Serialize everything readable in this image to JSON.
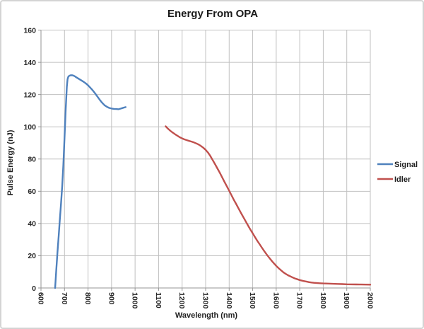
{
  "title": "Energy From OPA",
  "colors": {
    "signal": "#4F81BD",
    "idler": "#C0504D",
    "gridline": "#C0C0C0",
    "axis_line": "#969696",
    "text": "#1f1f1f",
    "frame_border": "#d4d4d4",
    "background": "#ffffff"
  },
  "legend": {
    "entries": [
      {
        "label": "Signal",
        "color": "#4F81BD"
      },
      {
        "label": "Idler",
        "color": "#C0504D"
      }
    ],
    "position": "right"
  },
  "chart_data": {
    "type": "line",
    "title": "Energy From OPA",
    "xlabel": "Wavelength (nm)",
    "ylabel": "Pulse Energy (nJ)",
    "xlim": [
      600,
      2000
    ],
    "ylim": [
      0,
      160
    ],
    "x_ticks": [
      600,
      700,
      800,
      900,
      1000,
      1100,
      1200,
      1300,
      1400,
      1500,
      1600,
      1700,
      1800,
      1900,
      2000
    ],
    "y_ticks": [
      0,
      20,
      40,
      60,
      80,
      100,
      120,
      140,
      160
    ],
    "grid": true,
    "legend_position": "right",
    "series": [
      {
        "name": "Signal",
        "color": "#4F81BD",
        "points": [
          [
            660,
            0
          ],
          [
            665,
            11
          ],
          [
            670,
            22
          ],
          [
            675,
            32
          ],
          [
            680,
            42
          ],
          [
            685,
            52
          ],
          [
            690,
            63
          ],
          [
            695,
            76
          ],
          [
            700,
            93
          ],
          [
            705,
            111
          ],
          [
            710,
            125
          ],
          [
            713,
            129.5
          ],
          [
            716,
            131
          ],
          [
            720,
            131.6
          ],
          [
            725,
            131.9
          ],
          [
            730,
            132
          ],
          [
            735,
            131.9
          ],
          [
            740,
            131.6
          ],
          [
            745,
            131.2
          ],
          [
            750,
            130.7
          ],
          [
            760,
            129.8
          ],
          [
            770,
            128.9
          ],
          [
            780,
            128
          ],
          [
            790,
            127
          ],
          [
            800,
            125.7
          ],
          [
            810,
            124.2
          ],
          [
            820,
            122.6
          ],
          [
            830,
            120.7
          ],
          [
            840,
            118.7
          ],
          [
            850,
            116.7
          ],
          [
            860,
            114.9
          ],
          [
            870,
            113.4
          ],
          [
            880,
            112.4
          ],
          [
            890,
            111.7
          ],
          [
            900,
            111.3
          ],
          [
            910,
            111.1
          ],
          [
            920,
            111
          ],
          [
            930,
            110.9
          ],
          [
            940,
            111.3
          ],
          [
            950,
            111.8
          ],
          [
            960,
            112.2
          ]
        ]
      },
      {
        "name": "Idler",
        "color": "#C0504D",
        "points": [
          [
            1130,
            100.3
          ],
          [
            1140,
            98.8
          ],
          [
            1150,
            97.5
          ],
          [
            1160,
            96.4
          ],
          [
            1170,
            95.4
          ],
          [
            1180,
            94.4
          ],
          [
            1190,
            93.5
          ],
          [
            1200,
            92.8
          ],
          [
            1210,
            92.2
          ],
          [
            1220,
            91.7
          ],
          [
            1230,
            91.2
          ],
          [
            1240,
            90.8
          ],
          [
            1250,
            90.3
          ],
          [
            1260,
            89.7
          ],
          [
            1270,
            89
          ],
          [
            1280,
            88.1
          ],
          [
            1290,
            87
          ],
          [
            1300,
            85.7
          ],
          [
            1310,
            84
          ],
          [
            1320,
            81.8
          ],
          [
            1330,
            79.3
          ],
          [
            1340,
            76.8
          ],
          [
            1350,
            74.2
          ],
          [
            1360,
            71.5
          ],
          [
            1370,
            68.7
          ],
          [
            1380,
            65.9
          ],
          [
            1390,
            63.1
          ],
          [
            1400,
            60.3
          ],
          [
            1410,
            57.5
          ],
          [
            1420,
            54.7
          ],
          [
            1430,
            52
          ],
          [
            1440,
            49.3
          ],
          [
            1450,
            46.6
          ],
          [
            1460,
            44
          ],
          [
            1470,
            41.4
          ],
          [
            1480,
            38.8
          ],
          [
            1490,
            36.3
          ],
          [
            1500,
            33.9
          ],
          [
            1510,
            31.5
          ],
          [
            1520,
            29.2
          ],
          [
            1530,
            27
          ],
          [
            1540,
            24.8
          ],
          [
            1550,
            22.7
          ],
          [
            1560,
            20.7
          ],
          [
            1570,
            18.8
          ],
          [
            1580,
            17
          ],
          [
            1590,
            15.3
          ],
          [
            1600,
            13.7
          ],
          [
            1610,
            12.3
          ],
          [
            1620,
            11
          ],
          [
            1630,
            9.8
          ],
          [
            1640,
            8.8
          ],
          [
            1650,
            7.9
          ],
          [
            1660,
            7.2
          ],
          [
            1670,
            6.5
          ],
          [
            1680,
            5.9
          ],
          [
            1690,
            5.4
          ],
          [
            1700,
            4.9
          ],
          [
            1710,
            4.5
          ],
          [
            1720,
            4.2
          ],
          [
            1730,
            3.9
          ],
          [
            1740,
            3.6
          ],
          [
            1750,
            3.4
          ],
          [
            1760,
            3.2
          ],
          [
            1770,
            3.1
          ],
          [
            1780,
            3
          ],
          [
            1790,
            2.9
          ],
          [
            1800,
            2.8
          ],
          [
            1820,
            2.7
          ],
          [
            1840,
            2.6
          ],
          [
            1860,
            2.5
          ],
          [
            1880,
            2.4
          ],
          [
            1900,
            2.3
          ],
          [
            1920,
            2.25
          ],
          [
            1940,
            2.2
          ],
          [
            1960,
            2.15
          ],
          [
            1980,
            2.1
          ],
          [
            2000,
            2.05
          ]
        ]
      }
    ]
  }
}
